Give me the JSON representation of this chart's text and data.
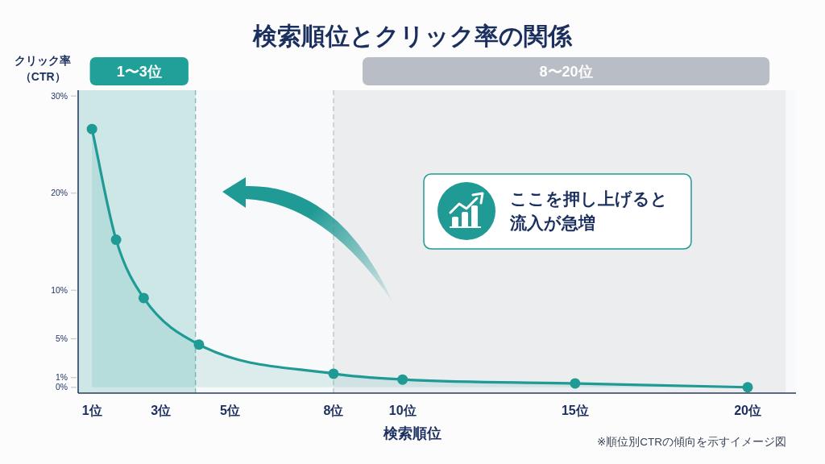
{
  "chart_data": {
    "type": "area",
    "title": "検索順位とクリック率の関係",
    "xlabel": "検索順位",
    "ylabel": "クリック率（CTR）",
    "x": [
      1,
      1.7,
      2.5,
      4.1,
      8,
      10,
      15,
      20
    ],
    "series": [
      {
        "color": "#1f9a94",
        "values": [
          26.6,
          15.2,
          9.2,
          4.4,
          1.4,
          0.8,
          0.4,
          0
        ]
      }
    ],
    "xlim": [
      0.6,
      21.4
    ],
    "xticks": [
      {
        "value": 1,
        "label": "1位"
      },
      {
        "value": 3,
        "label": "3位"
      },
      {
        "value": 5,
        "label": "5位"
      },
      {
        "value": 8,
        "label": "8位"
      },
      {
        "value": 10,
        "label": "10位"
      },
      {
        "value": 15,
        "label": "15位"
      },
      {
        "value": 20,
        "label": "20位"
      }
    ],
    "ylim": [
      -0.6,
      30.6
    ],
    "yticks": [
      {
        "value": 0,
        "label": "0%"
      },
      {
        "value": 1,
        "label": "1%"
      },
      {
        "value": 5,
        "label": "5%"
      },
      {
        "value": 10,
        "label": "10%"
      },
      {
        "value": 20,
        "label": "20%"
      },
      {
        "value": 30,
        "label": "30%"
      }
    ],
    "bands": [
      {
        "axis": "x",
        "from": 0.6,
        "to": 4,
        "label": "1〜3位",
        "color": "#21a09a"
      },
      {
        "axis": "x",
        "from": 8,
        "to": 21.1,
        "label": "8〜20位",
        "color": "#b9bdc5"
      }
    ],
    "ref_lines": [
      {
        "axis": "x",
        "value": 4,
        "color": "#8cb9b6",
        "line_style": "dashed"
      },
      {
        "axis": "x",
        "value": 8,
        "color": "#bfc3ca",
        "line_style": "dashed"
      }
    ],
    "marker": "circle",
    "line_style": "solid",
    "annotations": [
      "ここを押し上げると流入が急増",
      "※順位別CTRの傾向を示すイメージ図"
    ]
  }
}
